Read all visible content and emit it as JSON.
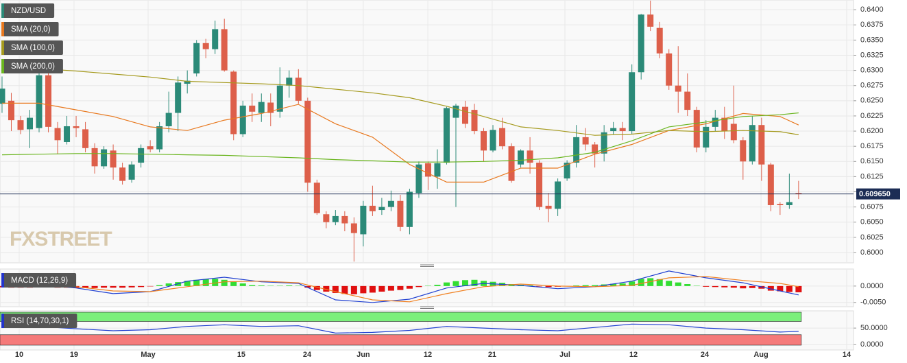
{
  "chart_data": [
    {
      "type": "candlestick",
      "name": "NZD/USD",
      "color": "#2b8a78",
      "up_color": "#2b8a78",
      "down_color": "#dd5f4a",
      "grid": true,
      "watermark": "FXSTREET",
      "xlim": [
        -0.22,
        91.93
      ],
      "xticks": [
        {
          "value": 1.85,
          "label": "10"
        },
        {
          "value": 7.77,
          "label": "19"
        },
        {
          "value": 15.77,
          "label": "May"
        },
        {
          "value": 25.83,
          "label": "15"
        },
        {
          "value": 32.94,
          "label": "24"
        },
        {
          "value": 39.0,
          "label": "Jun"
        },
        {
          "value": 45.97,
          "label": "12"
        },
        {
          "value": 52.92,
          "label": "21"
        },
        {
          "value": 60.77,
          "label": "Jul"
        },
        {
          "value": 68.17,
          "label": "12"
        },
        {
          "value": 75.87,
          "label": "24"
        },
        {
          "value": 81.94,
          "label": "Aug"
        },
        {
          "value": 91.19,
          "label": "14"
        }
      ],
      "ylim": [
        0.5983,
        0.6416
      ],
      "yticks": [
        {
          "value": 0.6,
          "label": "0.6000"
        },
        {
          "value": 0.6025,
          "label": "0.6025"
        },
        {
          "value": 0.605,
          "label": "0.6050"
        },
        {
          "value": 0.6075,
          "label": "0.6075"
        },
        {
          "value": 0.61,
          "label": "0.6100"
        },
        {
          "value": 0.6125,
          "label": "0.6125"
        },
        {
          "value": 0.615,
          "label": "0.6150"
        },
        {
          "value": 0.6175,
          "label": "0.6175"
        },
        {
          "value": 0.62,
          "label": "0.6200"
        },
        {
          "value": 0.6225,
          "label": "0.6225"
        },
        {
          "value": 0.625,
          "label": "0.6250"
        },
        {
          "value": 0.6275,
          "label": "0.6275"
        },
        {
          "value": 0.63,
          "label": "0.6300"
        },
        {
          "value": 0.6325,
          "label": "0.6325"
        },
        {
          "value": 0.635,
          "label": "0.6350"
        },
        {
          "value": 0.6375,
          "label": "0.6375"
        },
        {
          "value": 0.64,
          "label": "0.6400"
        }
      ],
      "last_price": {
        "value": 0.60965,
        "label": "0.609650"
      },
      "ohlc": [
        [
          0.6245,
          0.629,
          0.623,
          0.627
        ],
        [
          0.625,
          0.6263,
          0.62,
          0.6218
        ],
        [
          0.6218,
          0.6225,
          0.6195,
          0.6202
        ],
        [
          0.6203,
          0.6235,
          0.6172,
          0.6222
        ],
        [
          0.6205,
          0.63,
          0.6198,
          0.6292
        ],
        [
          0.6292,
          0.6297,
          0.6198,
          0.6207
        ],
        [
          0.6205,
          0.6215,
          0.6162,
          0.6185
        ],
        [
          0.6182,
          0.6225,
          0.6178,
          0.6208
        ],
        [
          0.6208,
          0.6225,
          0.619,
          0.6205
        ],
        [
          0.6203,
          0.6215,
          0.6165,
          0.6172
        ],
        [
          0.6172,
          0.618,
          0.613,
          0.6142
        ],
        [
          0.6142,
          0.6175,
          0.6138,
          0.617
        ],
        [
          0.6168,
          0.6178,
          0.612,
          0.614
        ],
        [
          0.614,
          0.6148,
          0.6112,
          0.6118
        ],
        [
          0.612,
          0.615,
          0.6115,
          0.6145
        ],
        [
          0.6148,
          0.6178,
          0.614,
          0.6172
        ],
        [
          0.6175,
          0.6185,
          0.6165,
          0.617
        ],
        [
          0.617,
          0.6215,
          0.6165,
          0.6208
        ],
        [
          0.6208,
          0.6265,
          0.6198,
          0.623
        ],
        [
          0.623,
          0.629,
          0.62,
          0.628
        ],
        [
          0.6278,
          0.63,
          0.6262,
          0.6283
        ],
        [
          0.6295,
          0.635,
          0.629,
          0.6345
        ],
        [
          0.6345,
          0.6352,
          0.632,
          0.6335
        ],
        [
          0.6335,
          0.6382,
          0.6327,
          0.6368
        ],
        [
          0.6368,
          0.6385,
          0.6298,
          0.63
        ],
        [
          0.6298,
          0.63,
          0.6185,
          0.6195
        ],
        [
          0.6195,
          0.625,
          0.619,
          0.6242
        ],
        [
          0.6242,
          0.6262,
          0.6215,
          0.6232
        ],
        [
          0.623,
          0.6262,
          0.6215,
          0.6248
        ],
        [
          0.6247,
          0.6262,
          0.6208,
          0.623
        ],
        [
          0.6232,
          0.6305,
          0.6222,
          0.6275
        ],
        [
          0.6275,
          0.63,
          0.6255,
          0.6288
        ],
        [
          0.6288,
          0.6302,
          0.6245,
          0.625
        ],
        [
          0.625,
          0.6255,
          0.61,
          0.6115
        ],
        [
          0.6115,
          0.612,
          0.6062,
          0.6065
        ],
        [
          0.6063,
          0.6068,
          0.604,
          0.605
        ],
        [
          0.605,
          0.607,
          0.6045,
          0.606
        ],
        [
          0.606,
          0.6068,
          0.6035,
          0.6048
        ],
        [
          0.6048,
          0.6058,
          0.5985,
          0.6032
        ],
        [
          0.603,
          0.6085,
          0.601,
          0.6077
        ],
        [
          0.6077,
          0.611,
          0.606,
          0.6068
        ],
        [
          0.607,
          0.609,
          0.6062,
          0.6075
        ],
        [
          0.6075,
          0.6102,
          0.6068,
          0.6085
        ],
        [
          0.6085,
          0.6095,
          0.6035,
          0.6042
        ],
        [
          0.6042,
          0.6105,
          0.603,
          0.61
        ],
        [
          0.6098,
          0.615,
          0.609,
          0.6145
        ],
        [
          0.6147,
          0.615,
          0.6103,
          0.6125
        ],
        [
          0.6125,
          0.617,
          0.6105,
          0.6147
        ],
        [
          0.6148,
          0.624,
          0.6145,
          0.6238
        ],
        [
          0.6222,
          0.6245,
          0.6075,
          0.6242
        ],
        [
          0.624,
          0.625,
          0.6205,
          0.6212
        ],
        [
          0.6235,
          0.6245,
          0.6195,
          0.62
        ],
        [
          0.62,
          0.6205,
          0.615,
          0.6168
        ],
        [
          0.6168,
          0.621,
          0.6165,
          0.6202
        ],
        [
          0.6205,
          0.6222,
          0.617,
          0.6175
        ],
        [
          0.6175,
          0.618,
          0.6115,
          0.6118
        ],
        [
          0.6145,
          0.617,
          0.614,
          0.6168
        ],
        [
          0.6168,
          0.619,
          0.613,
          0.6148
        ],
        [
          0.6148,
          0.6152,
          0.607,
          0.6075
        ],
        [
          0.6077,
          0.6098,
          0.605,
          0.6072
        ],
        [
          0.6072,
          0.6122,
          0.606,
          0.6117
        ],
        [
          0.6122,
          0.6152,
          0.6118,
          0.6148
        ],
        [
          0.6148,
          0.621,
          0.614,
          0.619
        ],
        [
          0.619,
          0.6205,
          0.6168,
          0.6178
        ],
        [
          0.6178,
          0.6182,
          0.614,
          0.6163
        ],
        [
          0.6163,
          0.621,
          0.615,
          0.6198
        ],
        [
          0.62,
          0.6215,
          0.6195,
          0.6205
        ],
        [
          0.6205,
          0.6215,
          0.6185,
          0.62
        ],
        [
          0.62,
          0.631,
          0.6195,
          0.6297
        ],
        [
          0.6297,
          0.6393,
          0.6285,
          0.6392
        ],
        [
          0.6392,
          0.6415,
          0.6365,
          0.6372
        ],
        [
          0.637,
          0.638,
          0.632,
          0.6328
        ],
        [
          0.6328,
          0.6335,
          0.6268,
          0.6275
        ],
        [
          0.6275,
          0.634,
          0.623,
          0.6265
        ],
        [
          0.6265,
          0.6295,
          0.6225,
          0.6235
        ],
        [
          0.6235,
          0.624,
          0.6165,
          0.6173
        ],
        [
          0.6173,
          0.6218,
          0.6165,
          0.6207
        ],
        [
          0.6207,
          0.6235,
          0.62,
          0.6222
        ],
        [
          0.6222,
          0.624,
          0.6187,
          0.62
        ],
        [
          0.6212,
          0.6275,
          0.618,
          0.6185
        ],
        [
          0.6185,
          0.619,
          0.612,
          0.615
        ],
        [
          0.615,
          0.6225,
          0.6145,
          0.621
        ],
        [
          0.621,
          0.6222,
          0.6118,
          0.6145
        ],
        [
          0.6145,
          0.6148,
          0.6068,
          0.6078
        ],
        [
          0.608,
          0.6083,
          0.6062,
          0.6078
        ],
        [
          0.6078,
          0.613,
          0.6072,
          0.6083
        ],
        [
          0.6098,
          0.6118,
          0.6088,
          0.6096
        ]
      ],
      "series": [
        {
          "name": "SMA (20,0)",
          "color": "#e8781e",
          "x": [
            0,
            4,
            8,
            12,
            16,
            20,
            24,
            28,
            32,
            36,
            40,
            44,
            48,
            52,
            56,
            60,
            64,
            68,
            72,
            76,
            80,
            84,
            86
          ],
          "values": [
            0.6246,
            0.6246,
            0.6235,
            0.6224,
            0.6207,
            0.6201,
            0.6218,
            0.6229,
            0.6244,
            0.6212,
            0.619,
            0.6145,
            0.6116,
            0.6116,
            0.6139,
            0.6139,
            0.6162,
            0.6178,
            0.6201,
            0.6212,
            0.6229,
            0.6224,
            0.621
          ]
        },
        {
          "name": "SMA (100,0)",
          "color": "#a59a1e",
          "x": [
            0,
            4,
            8,
            12,
            16,
            20,
            24,
            28,
            32,
            36,
            40,
            44,
            48,
            52,
            56,
            60,
            64,
            68,
            72,
            76,
            80,
            84,
            86
          ],
          "values": [
            0.6305,
            0.6303,
            0.6299,
            0.6294,
            0.6289,
            0.6282,
            0.628,
            0.6278,
            0.6275,
            0.6269,
            0.6263,
            0.6255,
            0.6241,
            0.6224,
            0.6207,
            0.6201,
            0.6193,
            0.6195,
            0.6201,
            0.6199,
            0.6201,
            0.6199,
            0.6194
          ]
        },
        {
          "name": "SMA (200,0)",
          "color": "#6ab51f",
          "x": [
            0,
            4,
            8,
            12,
            16,
            20,
            24,
            28,
            32,
            36,
            40,
            44,
            48,
            52,
            56,
            60,
            64,
            68,
            72,
            76,
            80,
            84,
            86
          ],
          "values": [
            0.6161,
            0.6162,
            0.6163,
            0.6163,
            0.6162,
            0.6161,
            0.616,
            0.6158,
            0.6156,
            0.6153,
            0.6151,
            0.6149,
            0.6149,
            0.615,
            0.6152,
            0.6156,
            0.6165,
            0.6184,
            0.6207,
            0.6215,
            0.6224,
            0.6227,
            0.623
          ]
        }
      ]
    },
    {
      "type": "macd",
      "name": "MACD (12,26,9)",
      "color": "#2233cc",
      "up_color": "#33dd33",
      "down_color": "#e01010",
      "ylim": [
        -0.0063,
        0.0052
      ],
      "yticks": [
        {
          "value": -0.005,
          "label": "-0.0050"
        },
        {
          "value": 0,
          "label": "0.0000"
        }
      ],
      "histogram": [
        -0.0004,
        -0.0005,
        -0.0005,
        -0.0005,
        -0.0003,
        -0.0004,
        -0.0005,
        -0.0005,
        -0.0006,
        -0.0006,
        -0.0006,
        -0.0005,
        -0.0005,
        -0.0005,
        -0.0004,
        -0.0003,
        -0.0001,
        0.0003,
        0.0008,
        0.0012,
        0.0016,
        0.0019,
        0.0021,
        0.0022,
        0.0019,
        0.0014,
        0.0008,
        0.0003,
        0.0002,
        0.0001,
        0.0001,
        0.0002,
        0.0001,
        -0.0005,
        -0.0012,
        -0.0017,
        -0.0021,
        -0.0024,
        -0.0025,
        -0.0022,
        -0.002,
        -0.0017,
        -0.0014,
        -0.0012,
        -0.0008,
        -0.0003,
        0.0001,
        0.0004,
        0.0011,
        0.0015,
        0.0018,
        0.0019,
        0.0016,
        0.0013,
        0.001,
        0.0006,
        0.0004,
        0.0002,
        -0.0001,
        -0.0003,
        -0.0002,
        0,
        0.0002,
        0.0003,
        0.0003,
        0.0005,
        0.0007,
        0.0008,
        0.0014,
        0.0022,
        0.0024,
        0.0021,
        0.0016,
        0.0011,
        0.0006,
        0.0001,
        -0.0002,
        -0.0003,
        -0.0004,
        -0.0005,
        -0.0007,
        -0.0006,
        -0.0008,
        -0.0014,
        -0.0016,
        -0.0018,
        -0.0019
      ],
      "series": [
        {
          "color": "#1f3fd1",
          "x": [
            0,
            4,
            8,
            12,
            16,
            20,
            24,
            28,
            32,
            36,
            40,
            44,
            48,
            52,
            56,
            60,
            64,
            68,
            72,
            76,
            80,
            84,
            86
          ],
          "values": [
            0.001,
            0.0004,
            -0.0006,
            -0.0023,
            -0.0017,
            0.0015,
            0.0027,
            0.0013,
            0.0008,
            -0.0042,
            -0.005,
            -0.004,
            -0.0006,
            0.0008,
            0.0002,
            -0.0008,
            -0.0002,
            0.0015,
            0.0046,
            0.0025,
            0.001,
            -0.0015,
            -0.0027
          ]
        },
        {
          "color": "#f08020",
          "x": [
            0,
            4,
            8,
            12,
            16,
            20,
            24,
            28,
            32,
            36,
            40,
            44,
            48,
            52,
            56,
            60,
            64,
            68,
            72,
            76,
            80,
            84,
            86
          ],
          "values": [
            0.0004,
            0,
            -0.0002,
            -0.0015,
            -0.0017,
            -0.0002,
            0.0013,
            0.0015,
            0.001,
            -0.0017,
            -0.0042,
            -0.0048,
            -0.0023,
            -0.0002,
            0.0006,
            0,
            -0.0002,
            0.0002,
            0.0025,
            0.0029,
            0.0017,
            0.0008,
            -0.0002
          ]
        }
      ]
    },
    {
      "type": "rsi",
      "name": "RSI (14,70,30,1)",
      "color": "#2233cc",
      "overbought": 70,
      "oversold": 30,
      "ylim": [
        -16,
        102
      ],
      "yticks": [
        {
          "value": 0,
          "label": "0.0000"
        },
        {
          "value": 50,
          "label": "50.0000"
        }
      ],
      "series": [
        {
          "color": "#2040d0",
          "x": [
            0,
            4,
            8,
            12,
            16,
            20,
            24,
            28,
            32,
            36,
            40,
            44,
            48,
            52,
            56,
            60,
            64,
            68,
            72,
            76,
            80,
            84,
            86
          ],
          "values": [
            58,
            55,
            48,
            42,
            45,
            55,
            60,
            55,
            57,
            35,
            37,
            43,
            55,
            50,
            45,
            42,
            52,
            62,
            60,
            50,
            45,
            38,
            40
          ]
        }
      ]
    }
  ]
}
